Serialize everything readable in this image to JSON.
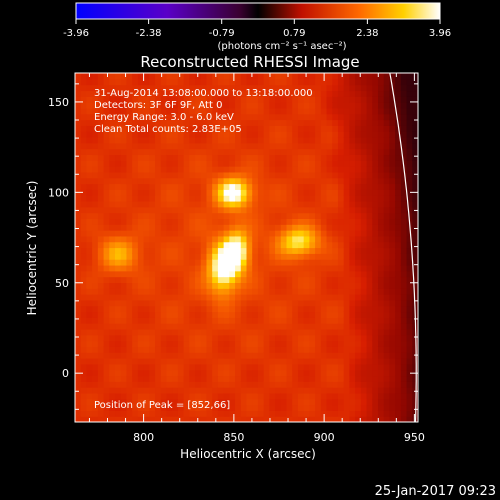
{
  "chart_data": {
    "type": "heatmap",
    "title": "Reconstructed RHESSI Image",
    "xlabel": "Heliocentric X (arcsec)",
    "ylabel": "Heliocentric Y (arcsec)",
    "xlim": [
      762,
      952
    ],
    "ylim": [
      -27,
      166
    ],
    "x_ticks": [
      800,
      850,
      900,
      950
    ],
    "y_ticks": [
      0,
      50,
      100,
      150
    ],
    "colorbar": {
      "range": [
        -3.96,
        3.96
      ],
      "ticks": [
        "-3.96",
        "-2.38",
        "-0.79",
        "0.79",
        "2.38",
        "3.96"
      ],
      "unit_label": "(photons cm⁻² s⁻¹ asec⁻²)"
    },
    "annotations": [
      "31-Aug-2014 13:08:00.000 to 13:18:00.000",
      "Detectors: 3F 6F 9F, Att 0",
      "Energy Range: 3.0 - 6.0 keV",
      "Clean    Total counts: 2.83E+05"
    ],
    "peak_text": "Position of Peak = [852,66]",
    "sources": [
      {
        "x": 850,
        "y": 100,
        "sx": 7,
        "sy": 6,
        "amp": 1.0
      },
      {
        "x": 844,
        "y": 58,
        "sx": 6,
        "sy": 10,
        "amp": 1.0
      },
      {
        "x": 852,
        "y": 68,
        "sx": 5,
        "sy": 8,
        "amp": 0.9
      },
      {
        "x": 886,
        "y": 73,
        "sx": 8,
        "sy": 6,
        "amp": 0.8
      },
      {
        "x": 786,
        "y": 66,
        "sx": 8,
        "sy": 7,
        "amp": 0.55
      }
    ],
    "limb": {
      "center": [
        0,
        0
      ],
      "radius": 951
    }
  },
  "timestamp": "25-Jan-2017 09:23"
}
